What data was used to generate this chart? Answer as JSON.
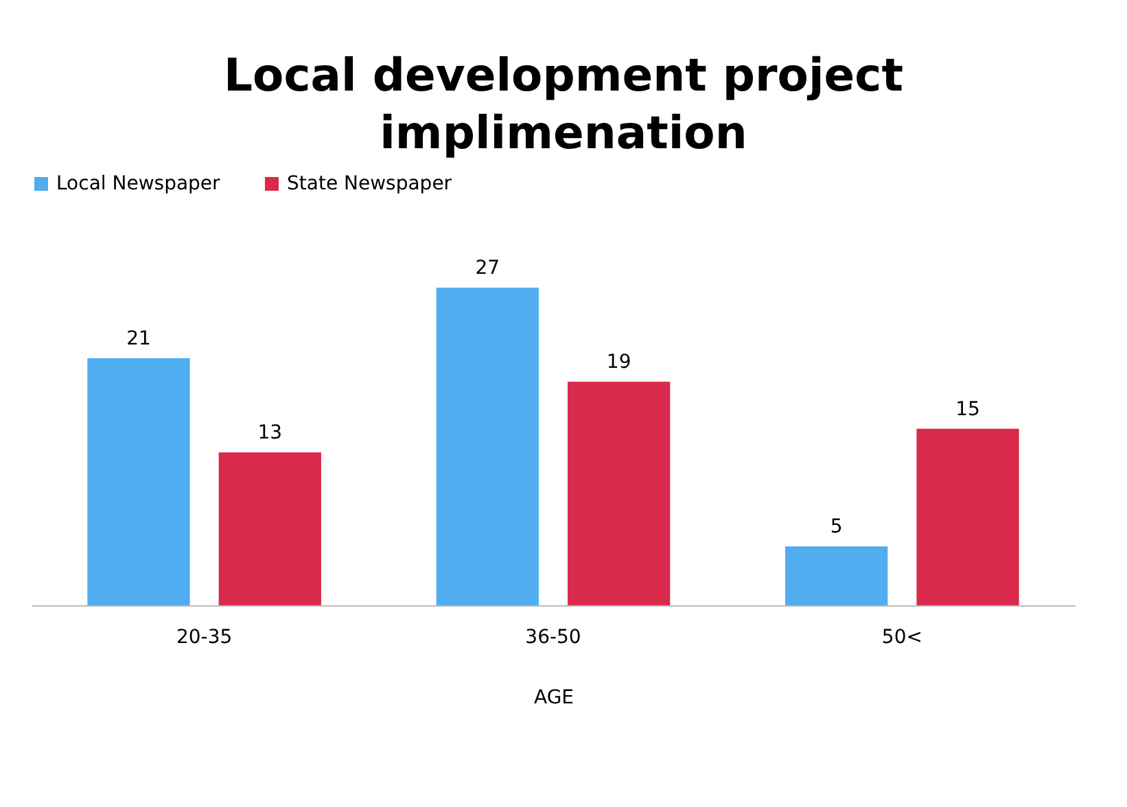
{
  "chart_data": {
    "type": "bar",
    "title": "Local development project implimenation",
    "xlabel": "AGE",
    "categories": [
      "20-35",
      "36-50",
      "50<"
    ],
    "series": [
      {
        "name": "Local Newspaper",
        "color": "#4fadf0",
        "values": [
          21,
          27,
          5
        ]
      },
      {
        "name": "State Newspaper",
        "color": "#d92a4b",
        "values": [
          13,
          19,
          15
        ]
      }
    ],
    "data_labels": true,
    "legend": "top",
    "grid": false
  }
}
